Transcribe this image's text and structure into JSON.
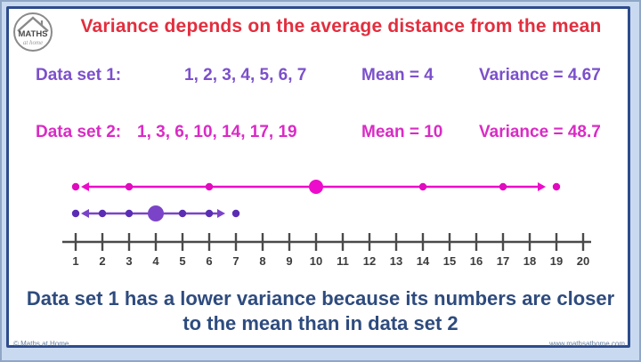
{
  "header": {
    "title": "Variance depends on the average distance from the mean"
  },
  "logo": {
    "text": "MATHS",
    "subtext": "at home"
  },
  "rows": [
    {
      "label": "Data set 1:",
      "values": "1, 2, 3, 4, 5, 6, 7",
      "mean": "Mean = 4",
      "variance": "Variance = 4.67",
      "color": "#7b50cb"
    },
    {
      "label": "Data set 2:",
      "values": "1, 3, 6, 10, 14, 17, 19",
      "mean": "Mean = 10",
      "variance": "Variance = 48.7",
      "color": "#d92bc5"
    }
  ],
  "conclusion": {
    "line1": "Data set 1 has a lower variance because its numbers are closer",
    "line2": "to the mean than in data set 2"
  },
  "footer": {
    "left": "© Maths at Home",
    "right": "www.mathsathome.com"
  },
  "colors": {
    "title_red": "#e22e3e",
    "dataset1_purple": "#7b50cb",
    "dataset2_magenta": "#d92bc5",
    "conclusion_navy": "#2e4b7e",
    "frame_navy": "#2e4c8c",
    "frame_background": "#c9daf0",
    "axis_gray": "#4a4a4a"
  },
  "chart_data": {
    "type": "number_line_dot_plot",
    "axis": {
      "min": 1,
      "max": 20,
      "tick_step": 1,
      "tick_labels": [
        "1",
        "2",
        "3",
        "4",
        "5",
        "6",
        "7",
        "8",
        "9",
        "10",
        "11",
        "12",
        "13",
        "14",
        "15",
        "16",
        "17",
        "18",
        "19",
        "20"
      ]
    },
    "series": [
      {
        "name": "Data set 2",
        "color": "#ed0ccb",
        "dot_color": "#e00bbe",
        "points": [
          1,
          3,
          6,
          10,
          14,
          17,
          19
        ],
        "mean": 10,
        "arrow_span": [
          1.2,
          18.6
        ]
      },
      {
        "name": "Data set 1",
        "color": "#7b44c8",
        "dot_color": "#5b2db3",
        "points": [
          1,
          2,
          3,
          4,
          5,
          6,
          7
        ],
        "mean": 4,
        "arrow_span": [
          1.2,
          6.6
        ]
      }
    ]
  }
}
